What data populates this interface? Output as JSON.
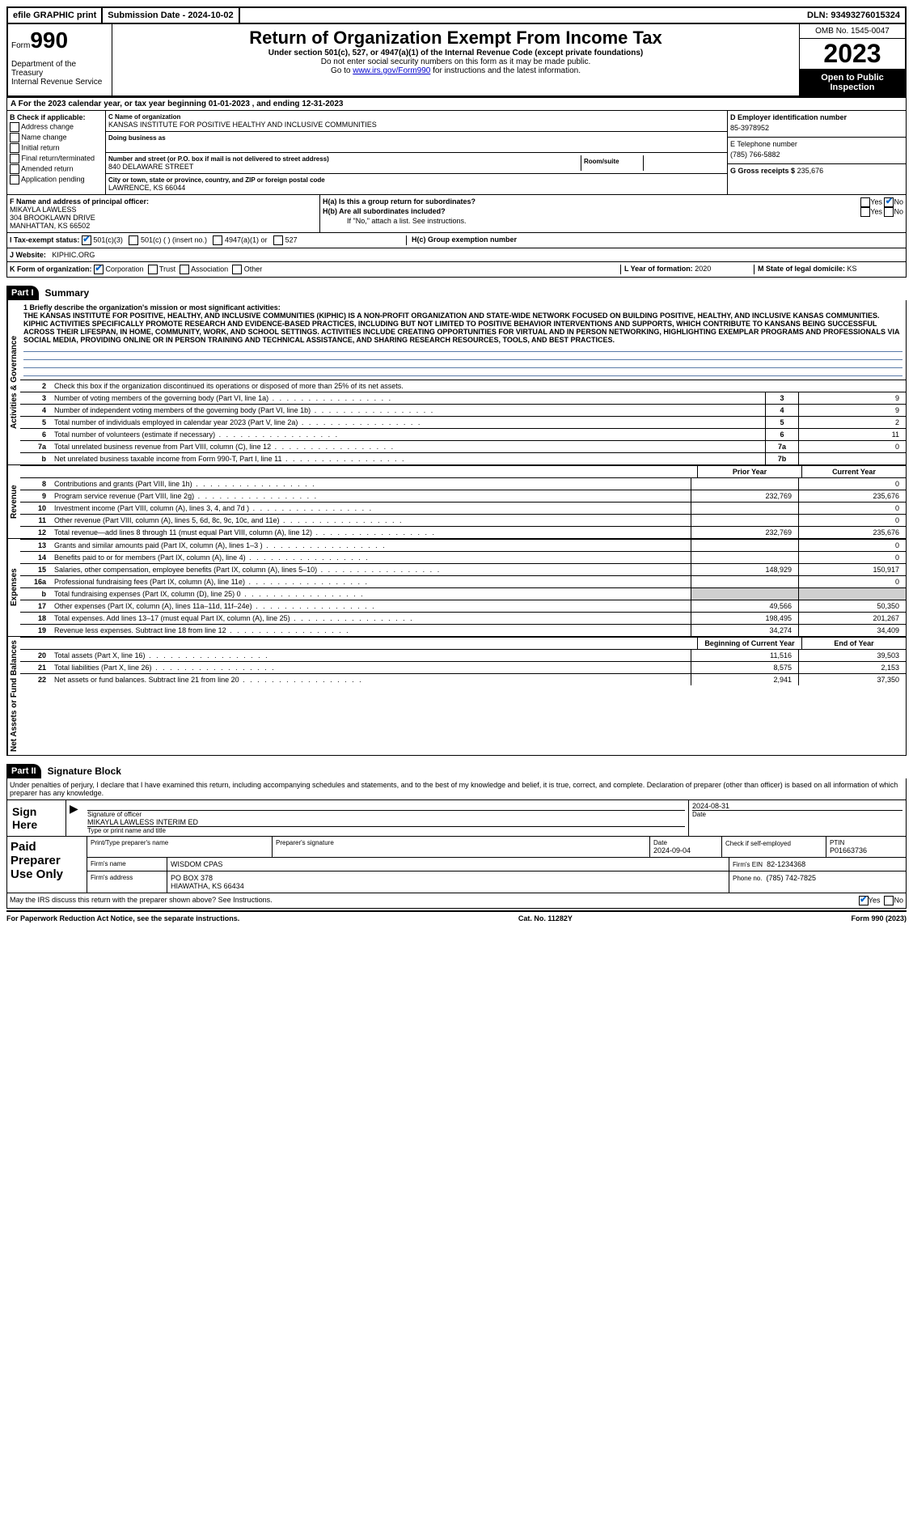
{
  "topbar": {
    "efile": "efile GRAPHIC print",
    "submission": "Submission Date - 2024-10-02",
    "dln": "DLN: 93493276015324"
  },
  "header": {
    "form_word": "Form",
    "form_num": "990",
    "title": "Return of Organization Exempt From Income Tax",
    "subtitle": "Under section 501(c), 527, or 4947(a)(1) of the Internal Revenue Code (except private foundations)",
    "note1": "Do not enter social security numbers on this form as it may be made public.",
    "note2_prefix": "Go to ",
    "note2_link": "www.irs.gov/Form990",
    "note2_suffix": " for instructions and the latest information.",
    "dept": "Department of the Treasury\nInternal Revenue Service",
    "omb": "OMB No. 1545-0047",
    "year": "2023",
    "open": "Open to Public Inspection"
  },
  "section_a": {
    "text": "A  For the 2023 calendar year, or tax year beginning 01-01-2023     , and ending 12-31-2023"
  },
  "col_b": {
    "title": "B Check if applicable:",
    "opts": [
      "Address change",
      "Name change",
      "Initial return",
      "Final return/terminated",
      "Amended return",
      "Application pending"
    ]
  },
  "col_c": {
    "name_label": "C Name of organization",
    "name": "KANSAS INSTITUTE FOR POSITIVE HEALTHY AND INCLUSIVE COMMUNITIES",
    "dba_label": "Doing business as",
    "street_label": "Number and street (or P.O. box if mail is not delivered to street address)",
    "street": "840 DELAWARE STREET",
    "suite_label": "Room/suite",
    "city_label": "City or town, state or province, country, and ZIP or foreign postal code",
    "city": "LAWRENCE, KS  66044"
  },
  "col_d": {
    "ein_label": "D Employer identification number",
    "ein": "85-3978952",
    "tel_label": "E Telephone number",
    "tel": "(785) 766-5882",
    "gross_label": "G Gross receipts $",
    "gross": "235,676"
  },
  "officer": {
    "label": "F  Name and address of principal officer:",
    "name": "MIKAYLA LAWLESS",
    "street": "304 BROOKLAWN DRIVE",
    "city": "MANHATTAN, KS  66502"
  },
  "h": {
    "ha": "H(a)  Is this a group return for subordinates?",
    "hb": "H(b)  Are all subordinates included?",
    "hb_note": "If \"No,\" attach a list. See instructions.",
    "hc": "H(c)  Group exemption number",
    "yes": "Yes",
    "no": "No"
  },
  "tax_status": {
    "label": "I  Tax-exempt status:",
    "o1": "501(c)(3)",
    "o2": "501(c) (  ) (insert no.)",
    "o3": "4947(a)(1) or",
    "o4": "527"
  },
  "website": {
    "label": "J  Website:",
    "value": "KIPHIC.ORG"
  },
  "org_form": {
    "label": "K Form of organization:",
    "corp": "Corporation",
    "trust": "Trust",
    "assoc": "Association",
    "other": "Other",
    "l_label": "L Year of formation:",
    "l_val": "2020",
    "m_label": "M State of legal domicile:",
    "m_val": "KS"
  },
  "part1": {
    "header": "Part I",
    "title": "Summary",
    "side1": "Activities & Governance",
    "side2": "Revenue",
    "side3": "Expenses",
    "side4": "Net Assets or Fund Balances",
    "line1_label": "1  Briefly describe the organization's mission or most significant activities:",
    "mission": "THE KANSAS INSTITUTE FOR POSITIVE, HEALTHY, AND INCLUSIVE COMMUNITIES (KIPHIC) IS A NON-PROFIT ORGANIZATION AND STATE-WIDE NETWORK FOCUSED ON BUILDING POSITIVE, HEALTHY, AND INCLUSIVE KANSAS COMMUNITIES. KIPHIC ACTIVITIES SPECIFICALLY PROMOTE RESEARCH AND EVIDENCE-BASED PRACTICES, INCLUDING BUT NOT LIMITED TO POSITIVE BEHAVIOR INTERVENTIONS AND SUPPORTS, WHICH CONTRIBUTE TO KANSANS BEING SUCCESSFUL ACROSS THEIR LIFESPAN, IN HOME, COMMUNITY, WORK, AND SCHOOL SETTINGS. ACTIVITIES INCLUDE CREATING OPPORTUNITIES FOR VIRTUAL AND IN PERSON NETWORKING, HIGHLIGHTING EXEMPLAR PROGRAMS AND PROFESSIONALS VIA SOCIAL MEDIA, PROVIDING ONLINE OR IN PERSON TRAINING AND TECHNICAL ASSISTANCE, AND SHARING RESEARCH RESOURCES, TOOLS, AND BEST PRACTICES.",
    "line2": "Check this box       if the organization discontinued its operations or disposed of more than 25% of its net assets.",
    "lines_gov": [
      {
        "n": "3",
        "t": "Number of voting members of the governing body (Part VI, line 1a)",
        "b": "3",
        "v": "9"
      },
      {
        "n": "4",
        "t": "Number of independent voting members of the governing body (Part VI, line 1b)",
        "b": "4",
        "v": "9"
      },
      {
        "n": "5",
        "t": "Total number of individuals employed in calendar year 2023 (Part V, line 2a)",
        "b": "5",
        "v": "2"
      },
      {
        "n": "6",
        "t": "Total number of volunteers (estimate if necessary)",
        "b": "6",
        "v": "11"
      },
      {
        "n": "7a",
        "t": "Total unrelated business revenue from Part VIII, column (C), line 12",
        "b": "7a",
        "v": "0"
      },
      {
        "n": "b",
        "t": "Net unrelated business taxable income from Form 990-T, Part I, line 11",
        "b": "7b",
        "v": ""
      }
    ],
    "col_headers": {
      "prior": "Prior Year",
      "current": "Current Year"
    },
    "lines_rev": [
      {
        "n": "8",
        "t": "Contributions and grants (Part VIII, line 1h)",
        "p": "",
        "c": "0"
      },
      {
        "n": "9",
        "t": "Program service revenue (Part VIII, line 2g)",
        "p": "232,769",
        "c": "235,676"
      },
      {
        "n": "10",
        "t": "Investment income (Part VIII, column (A), lines 3, 4, and 7d )",
        "p": "",
        "c": "0"
      },
      {
        "n": "11",
        "t": "Other revenue (Part VIII, column (A), lines 5, 6d, 8c, 9c, 10c, and 11e)",
        "p": "",
        "c": "0"
      },
      {
        "n": "12",
        "t": "Total revenue—add lines 8 through 11 (must equal Part VIII, column (A), line 12)",
        "p": "232,769",
        "c": "235,676"
      }
    ],
    "lines_exp": [
      {
        "n": "13",
        "t": "Grants and similar amounts paid (Part IX, column (A), lines 1–3 )",
        "p": "",
        "c": "0"
      },
      {
        "n": "14",
        "t": "Benefits paid to or for members (Part IX, column (A), line 4)",
        "p": "",
        "c": "0"
      },
      {
        "n": "15",
        "t": "Salaries, other compensation, employee benefits (Part IX, column (A), lines 5–10)",
        "p": "148,929",
        "c": "150,917"
      },
      {
        "n": "16a",
        "t": "Professional fundraising fees (Part IX, column (A), line 11e)",
        "p": "",
        "c": "0"
      },
      {
        "n": "b",
        "t": "Total fundraising expenses (Part IX, column (D), line 25) 0",
        "p": "shaded",
        "c": "shaded"
      },
      {
        "n": "17",
        "t": "Other expenses (Part IX, column (A), lines 11a–11d, 11f–24e)",
        "p": "49,566",
        "c": "50,350"
      },
      {
        "n": "18",
        "t": "Total expenses. Add lines 13–17 (must equal Part IX, column (A), line 25)",
        "p": "198,495",
        "c": "201,267"
      },
      {
        "n": "19",
        "t": "Revenue less expenses. Subtract line 18 from line 12",
        "p": "34,274",
        "c": "34,409"
      }
    ],
    "col_headers2": {
      "begin": "Beginning of Current Year",
      "end": "End of Year"
    },
    "lines_net": [
      {
        "n": "20",
        "t": "Total assets (Part X, line 16)",
        "p": "11,516",
        "c": "39,503"
      },
      {
        "n": "21",
        "t": "Total liabilities (Part X, line 26)",
        "p": "8,575",
        "c": "2,153"
      },
      {
        "n": "22",
        "t": "Net assets or fund balances. Subtract line 21 from line 20",
        "p": "2,941",
        "c": "37,350"
      }
    ]
  },
  "part2": {
    "header": "Part II",
    "title": "Signature Block",
    "perjury": "Under penalties of perjury, I declare that I have examined this return, including accompanying schedules and statements, and to the best of my knowledge and belief, it is true, correct, and complete. Declaration of preparer (other than officer) is based on all information of which preparer has any knowledge.",
    "sign_here": "Sign Here",
    "sig_officer_label": "Signature of officer",
    "sig_officer": "MIKAYLA LAWLESS INTERIM ED",
    "sig_type_label": "Type or print name and title",
    "sig_date": "2024-08-31",
    "date_label": "Date",
    "paid": "Paid Preparer Use Only",
    "prep_name_label": "Print/Type preparer's name",
    "prep_sig_label": "Preparer's signature",
    "prep_date": "2024-09-04",
    "check_label": "Check       if self-employed",
    "ptin_label": "PTIN",
    "ptin": "P01663736",
    "firm_name_label": "Firm's name",
    "firm_name": "WISDOM CPAS",
    "firm_ein_label": "Firm's EIN",
    "firm_ein": "82-1234368",
    "firm_addr_label": "Firm's address",
    "firm_addr1": "PO BOX 378",
    "firm_addr2": "HIAWATHA, KS  66434",
    "phone_label": "Phone no.",
    "phone": "(785) 742-7825",
    "discuss": "May the IRS discuss this return with the preparer shown above? See Instructions.",
    "yes": "Yes",
    "no": "No"
  },
  "footer": {
    "pra": "For Paperwork Reduction Act Notice, see the separate instructions.",
    "cat": "Cat. No. 11282Y",
    "form": "Form 990 (2023)"
  }
}
